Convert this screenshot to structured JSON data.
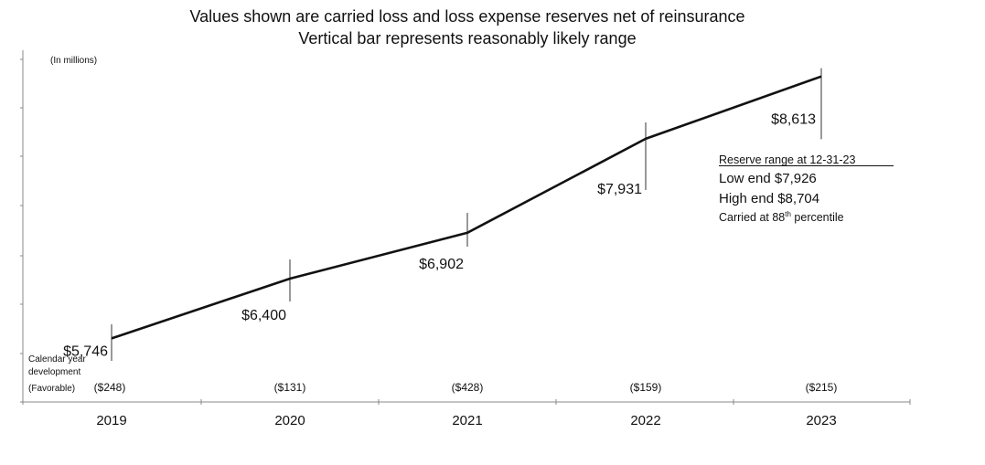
{
  "chart_data": {
    "type": "line",
    "title_line1": "Values shown are carried loss and loss expense reserves net of reinsurance",
    "title_line2": "Vertical bar represents reasonably likely range",
    "units": "(In millions)",
    "categories": [
      "2019",
      "2020",
      "2021",
      "2022",
      "2023"
    ],
    "values": [
      5746,
      6400,
      6902,
      7931,
      8613
    ],
    "value_labels": [
      "$5,746",
      "$6,400",
      "$6,902",
      "$7,931",
      "$8,613"
    ],
    "ranges": [
      {
        "low": 5500,
        "high": 5900
      },
      {
        "low": 6150,
        "high": 6610
      },
      {
        "low": 6750,
        "high": 7120
      },
      {
        "low": 7370,
        "high": 8110
      },
      {
        "low": 7926,
        "high": 8704
      }
    ],
    "development_label_lines": [
      "Calendar year",
      "development",
      "(Favorable)"
    ],
    "development_values": [
      "($248)",
      "($131)",
      "($428)",
      "($159)",
      "($215)"
    ],
    "legend_box": {
      "heading": "Reserve range at 12-31-23",
      "low_end": "Low end $7,926",
      "high_end": "High end $8,704",
      "carried_prefix": "Carried at 88",
      "carried_sup": "th",
      "carried_suffix": " percentile"
    },
    "ylim": [
      5050,
      8900
    ],
    "grid": false
  }
}
